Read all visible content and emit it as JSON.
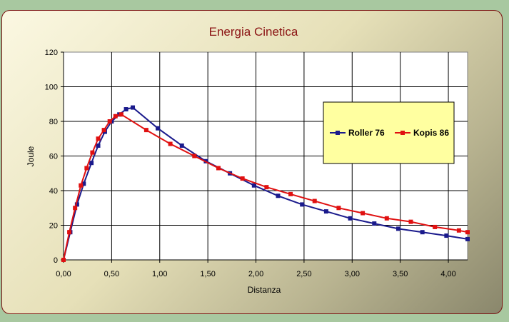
{
  "chart_data": {
    "type": "line",
    "title": "Energia Cinetica",
    "xlabel": "Distanza",
    "ylabel": "Joule",
    "xlim": [
      0,
      4.2
    ],
    "ylim": [
      0,
      120
    ],
    "xticks": [
      "0,00",
      "0,50",
      "1,00",
      "1,50",
      "2,00",
      "2,50",
      "3,00",
      "3,50",
      "4,00"
    ],
    "yticks": [
      "0",
      "20",
      "40",
      "60",
      "80",
      "100",
      "120"
    ],
    "grid": true,
    "legend_position": "right",
    "series": [
      {
        "name": "Roller 76",
        "color": "#1a1a8c",
        "x": [
          0,
          0.07,
          0.14,
          0.21,
          0.29,
          0.36,
          0.43,
          0.5,
          0.58,
          0.65,
          0.72,
          0.98,
          1.23,
          1.48,
          1.73,
          1.98,
          2.23,
          2.48,
          2.73,
          2.98,
          3.23,
          3.48,
          3.73,
          3.98,
          4.2
        ],
        "y": [
          0,
          16,
          32,
          44,
          56,
          66,
          74,
          80,
          84,
          87,
          88,
          76,
          66,
          57,
          50,
          43,
          37,
          32,
          28,
          24,
          21,
          18,
          16,
          14,
          12
        ]
      },
      {
        "name": "Kopis 86",
        "color": "#e01010",
        "x": [
          0,
          0.06,
          0.12,
          0.18,
          0.24,
          0.3,
          0.36,
          0.42,
          0.48,
          0.54,
          0.6,
          0.86,
          1.11,
          1.36,
          1.61,
          1.86,
          2.11,
          2.36,
          2.61,
          2.86,
          3.11,
          3.36,
          3.61,
          3.86,
          4.11,
          4.2
        ],
        "y": [
          0,
          16,
          30,
          43,
          53,
          62,
          70,
          75,
          80,
          83,
          84,
          75,
          67,
          60,
          53,
          47,
          42,
          38,
          34,
          30,
          27,
          24,
          22,
          19,
          17,
          16
        ]
      }
    ]
  }
}
